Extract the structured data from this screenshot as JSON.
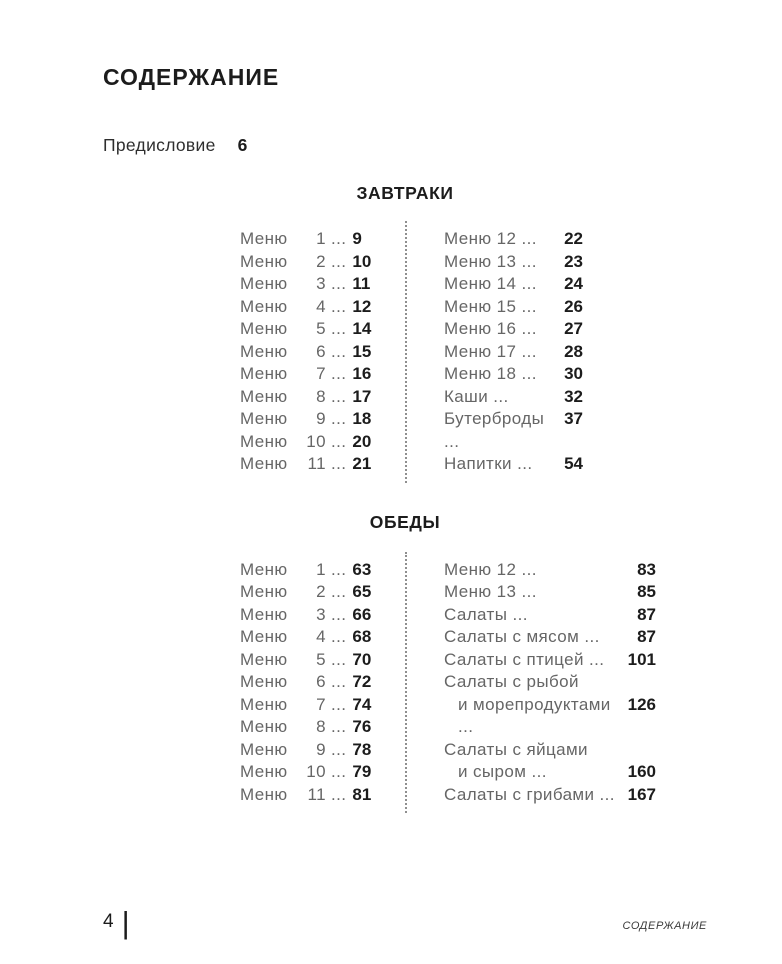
{
  "ellipsis": "...",
  "header": {
    "title": "СОДЕРЖАНИЕ"
  },
  "preface": {
    "label": "Предисловие",
    "page": "6"
  },
  "sections": [
    {
      "id": "breakfasts",
      "title": "ЗАВТРАКИ",
      "left_entries": [
        {
          "name": "Меню",
          "num": "1",
          "page": "9"
        },
        {
          "name": "Меню",
          "num": "2",
          "page": "10"
        },
        {
          "name": "Меню",
          "num": "3",
          "page": "11"
        },
        {
          "name": "Меню",
          "num": "4",
          "page": "12"
        },
        {
          "name": "Меню",
          "num": "5",
          "page": "14"
        },
        {
          "name": "Меню",
          "num": "6",
          "page": "15"
        },
        {
          "name": "Меню",
          "num": "7",
          "page": "16"
        },
        {
          "name": "Меню",
          "num": "8",
          "page": "17"
        },
        {
          "name": "Меню",
          "num": "9",
          "page": "18"
        },
        {
          "name": "Меню",
          "num": "10",
          "page": "20"
        },
        {
          "name": "Меню",
          "num": "11",
          "page": "21"
        }
      ],
      "right_entries": [
        {
          "lines": [
            "Меню 12 ..."
          ],
          "page": "22"
        },
        {
          "lines": [
            "Меню 13 ..."
          ],
          "page": "23"
        },
        {
          "lines": [
            "Меню 14 ..."
          ],
          "page": "24"
        },
        {
          "lines": [
            "Меню 15 ..."
          ],
          "page": "26"
        },
        {
          "lines": [
            "Меню 16 ..."
          ],
          "page": "27"
        },
        {
          "lines": [
            "Меню 17 ..."
          ],
          "page": "28"
        },
        {
          "lines": [
            "Меню 18 ..."
          ],
          "page": "30"
        },
        {
          "lines": [
            "Каши ..."
          ],
          "page": "32"
        },
        {
          "lines": [
            "Бутерброды ..."
          ],
          "page": "37"
        },
        {
          "lines": [
            "Напитки ..."
          ],
          "page": "54"
        }
      ]
    },
    {
      "id": "lunches",
      "title": "ОБЕДЫ",
      "left_entries": [
        {
          "name": "Меню",
          "num": "1",
          "page": "63"
        },
        {
          "name": "Меню",
          "num": "2",
          "page": "65"
        },
        {
          "name": "Меню",
          "num": "3",
          "page": "66"
        },
        {
          "name": "Меню",
          "num": "4",
          "page": "68"
        },
        {
          "name": "Меню",
          "num": "5",
          "page": "70"
        },
        {
          "name": "Меню",
          "num": "6",
          "page": "72"
        },
        {
          "name": "Меню",
          "num": "7",
          "page": "74"
        },
        {
          "name": "Меню",
          "num": "8",
          "page": "76"
        },
        {
          "name": "Меню",
          "num": "9",
          "page": "78"
        },
        {
          "name": "Меню",
          "num": "10",
          "page": "79"
        },
        {
          "name": "Меню",
          "num": "11",
          "page": "81"
        }
      ],
      "right_entries": [
        {
          "lines": [
            "Меню 12 ..."
          ],
          "page": "83"
        },
        {
          "lines": [
            "Меню 13 ..."
          ],
          "page": "85"
        },
        {
          "lines": [
            "Салаты ..."
          ],
          "page": "87"
        },
        {
          "lines": [
            "Салаты с мясом ..."
          ],
          "page": "87"
        },
        {
          "lines": [
            "Салаты с птицей ..."
          ],
          "page": "101"
        },
        {
          "lines": [
            "Салаты с рыбой",
            "и морепродуктами ..."
          ],
          "page": "126"
        },
        {
          "lines": [
            "Салаты с яйцами",
            "и сыром ..."
          ],
          "page": "160"
        },
        {
          "lines": [
            "Салаты с грибами ..."
          ],
          "page": "167"
        }
      ]
    }
  ],
  "footer": {
    "page_number": "4",
    "separator": "|",
    "running_title": "СОДЕРЖАНИЕ"
  },
  "colors": {
    "background": "#ffffff",
    "text": "#1c1c1c",
    "label": "#666666",
    "divider": "#8f8f8f"
  }
}
